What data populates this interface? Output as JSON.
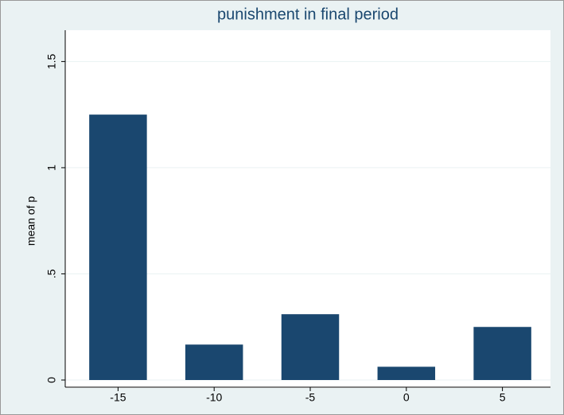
{
  "chart_data": {
    "type": "bar",
    "title": "punishment in final period",
    "y_label": "mean of p",
    "categories": [
      "-15",
      "-10",
      "-5",
      "0",
      "5"
    ],
    "values": [
      1.25,
      0.167,
      0.31,
      0.0625,
      0.25
    ],
    "color": "#1a476f",
    "ylim": [
      0,
      1.64
    ],
    "yticks": [
      0,
      {
        "value": 0.5,
        "label": ".5"
      },
      1,
      1.5
    ],
    "grid": true
  }
}
